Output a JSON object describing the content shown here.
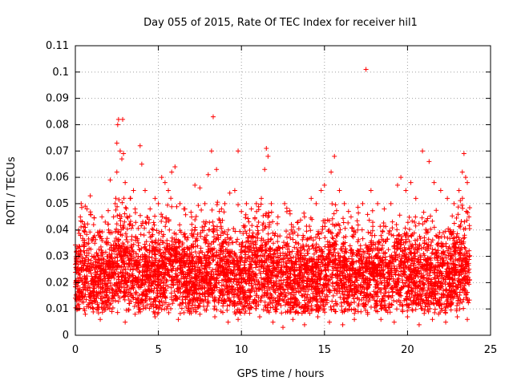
{
  "chart_data": {
    "type": "scatter",
    "title": "Day 055 of 2015, Rate Of TEC Index for receiver hil1",
    "xlabel": "GPS time / hours",
    "ylabel": "ROTI / TECUs",
    "xlim": [
      0,
      25
    ],
    "ylim": [
      0,
      0.11
    ],
    "x_ticks": [
      "0",
      "5",
      "10",
      "15",
      "20",
      "25"
    ],
    "y_ticks": [
      "0",
      "0.01",
      "0.02",
      "0.03",
      "0.04",
      "0.05",
      "0.06",
      "0.07",
      "0.08",
      "0.09",
      "0.1",
      "0.11"
    ],
    "grid": true,
    "marker": "+",
    "color": "#ff0000",
    "points": [
      [
        0.1,
        0.02
      ],
      [
        0.2,
        0.031
      ],
      [
        0.3,
        0.045
      ],
      [
        0.35,
        0.05
      ],
      [
        0.5,
        0.025
      ],
      [
        0.6,
        0.041
      ],
      [
        0.7,
        0.048
      ],
      [
        0.8,
        0.035
      ],
      [
        0.9,
        0.053
      ],
      [
        1.0,
        0.03
      ],
      [
        1.1,
        0.042
      ],
      [
        1.2,
        0.028
      ],
      [
        1.4,
        0.038
      ],
      [
        1.6,
        0.045
      ],
      [
        1.8,
        0.043
      ],
      [
        2.0,
        0.04
      ],
      [
        2.1,
        0.059
      ],
      [
        2.3,
        0.045
      ],
      [
        2.4,
        0.05
      ],
      [
        2.5,
        0.062
      ],
      [
        2.5,
        0.073
      ],
      [
        2.55,
        0.08
      ],
      [
        2.6,
        0.082
      ],
      [
        2.7,
        0.07
      ],
      [
        2.8,
        0.067
      ],
      [
        2.85,
        0.082
      ],
      [
        2.9,
        0.069
      ],
      [
        3.0,
        0.058
      ],
      [
        3.1,
        0.045
      ],
      [
        3.3,
        0.052
      ],
      [
        3.5,
        0.055
      ],
      [
        3.6,
        0.048
      ],
      [
        3.9,
        0.072
      ],
      [
        4.0,
        0.065
      ],
      [
        4.2,
        0.055
      ],
      [
        4.5,
        0.048
      ],
      [
        4.8,
        0.052
      ],
      [
        5.0,
        0.05
      ],
      [
        5.2,
        0.06
      ],
      [
        5.4,
        0.058
      ],
      [
        5.6,
        0.055
      ],
      [
        5.8,
        0.062
      ],
      [
        6.0,
        0.064
      ],
      [
        6.3,
        0.05
      ],
      [
        6.6,
        0.048
      ],
      [
        7.0,
        0.045
      ],
      [
        7.2,
        0.057
      ],
      [
        7.5,
        0.056
      ],
      [
        7.8,
        0.05
      ],
      [
        8.0,
        0.061
      ],
      [
        8.2,
        0.07
      ],
      [
        8.3,
        0.083
      ],
      [
        8.5,
        0.063
      ],
      [
        8.8,
        0.048
      ],
      [
        9.0,
        0.05
      ],
      [
        9.3,
        0.054
      ],
      [
        9.6,
        0.055
      ],
      [
        9.8,
        0.07
      ],
      [
        10.0,
        0.047
      ],
      [
        10.3,
        0.05
      ],
      [
        10.6,
        0.048
      ],
      [
        10.9,
        0.05
      ],
      [
        11.2,
        0.052
      ],
      [
        11.4,
        0.063
      ],
      [
        11.5,
        0.071
      ],
      [
        11.6,
        0.068
      ],
      [
        11.8,
        0.05
      ],
      [
        12.2,
        0.045
      ],
      [
        12.6,
        0.05
      ],
      [
        13.0,
        0.04
      ],
      [
        13.4,
        0.038
      ],
      [
        13.8,
        0.045
      ],
      [
        14.2,
        0.052
      ],
      [
        14.5,
        0.05
      ],
      [
        14.8,
        0.055
      ],
      [
        15.0,
        0.057
      ],
      [
        15.4,
        0.062
      ],
      [
        15.6,
        0.068
      ],
      [
        15.9,
        0.055
      ],
      [
        16.2,
        0.05
      ],
      [
        16.6,
        0.045
      ],
      [
        17.0,
        0.04
      ],
      [
        17.3,
        0.05
      ],
      [
        17.5,
        0.101
      ],
      [
        17.8,
        0.055
      ],
      [
        18.2,
        0.05
      ],
      [
        18.6,
        0.048
      ],
      [
        19.0,
        0.05
      ],
      [
        19.4,
        0.057
      ],
      [
        19.6,
        0.06
      ],
      [
        19.9,
        0.055
      ],
      [
        20.2,
        0.058
      ],
      [
        20.5,
        0.052
      ],
      [
        20.9,
        0.07
      ],
      [
        21.3,
        0.066
      ],
      [
        21.6,
        0.058
      ],
      [
        22.0,
        0.055
      ],
      [
        22.4,
        0.052
      ],
      [
        22.8,
        0.05
      ],
      [
        23.1,
        0.055
      ],
      [
        23.3,
        0.062
      ],
      [
        23.4,
        0.069
      ],
      [
        23.5,
        0.06
      ],
      [
        23.6,
        0.058
      ],
      [
        23.7,
        0.045
      ],
      [
        0.2,
        0.01
      ],
      [
        0.6,
        0.008
      ],
      [
        1.0,
        0.012
      ],
      [
        1.5,
        0.006
      ],
      [
        2.2,
        0.009
      ],
      [
        3.0,
        0.005
      ],
      [
        3.6,
        0.008
      ],
      [
        4.1,
        0.011
      ],
      [
        4.8,
        0.007
      ],
      [
        5.5,
        0.01
      ],
      [
        6.2,
        0.006
      ],
      [
        6.9,
        0.009
      ],
      [
        7.5,
        0.008
      ],
      [
        8.4,
        0.007
      ],
      [
        9.2,
        0.005
      ],
      [
        9.8,
        0.006
      ],
      [
        10.5,
        0.01
      ],
      [
        11.1,
        0.007
      ],
      [
        11.9,
        0.005
      ],
      [
        12.5,
        0.003
      ],
      [
        13.1,
        0.006
      ],
      [
        13.8,
        0.004
      ],
      [
        14.6,
        0.007
      ],
      [
        15.3,
        0.005
      ],
      [
        16.1,
        0.004
      ],
      [
        16.8,
        0.006
      ],
      [
        17.6,
        0.008
      ],
      [
        18.4,
        0.006
      ],
      [
        19.2,
        0.005
      ],
      [
        20.0,
        0.007
      ],
      [
        20.7,
        0.004
      ],
      [
        21.5,
        0.006
      ],
      [
        22.3,
        0.005
      ],
      [
        23.0,
        0.007
      ],
      [
        23.6,
        0.006
      ]
    ]
  }
}
